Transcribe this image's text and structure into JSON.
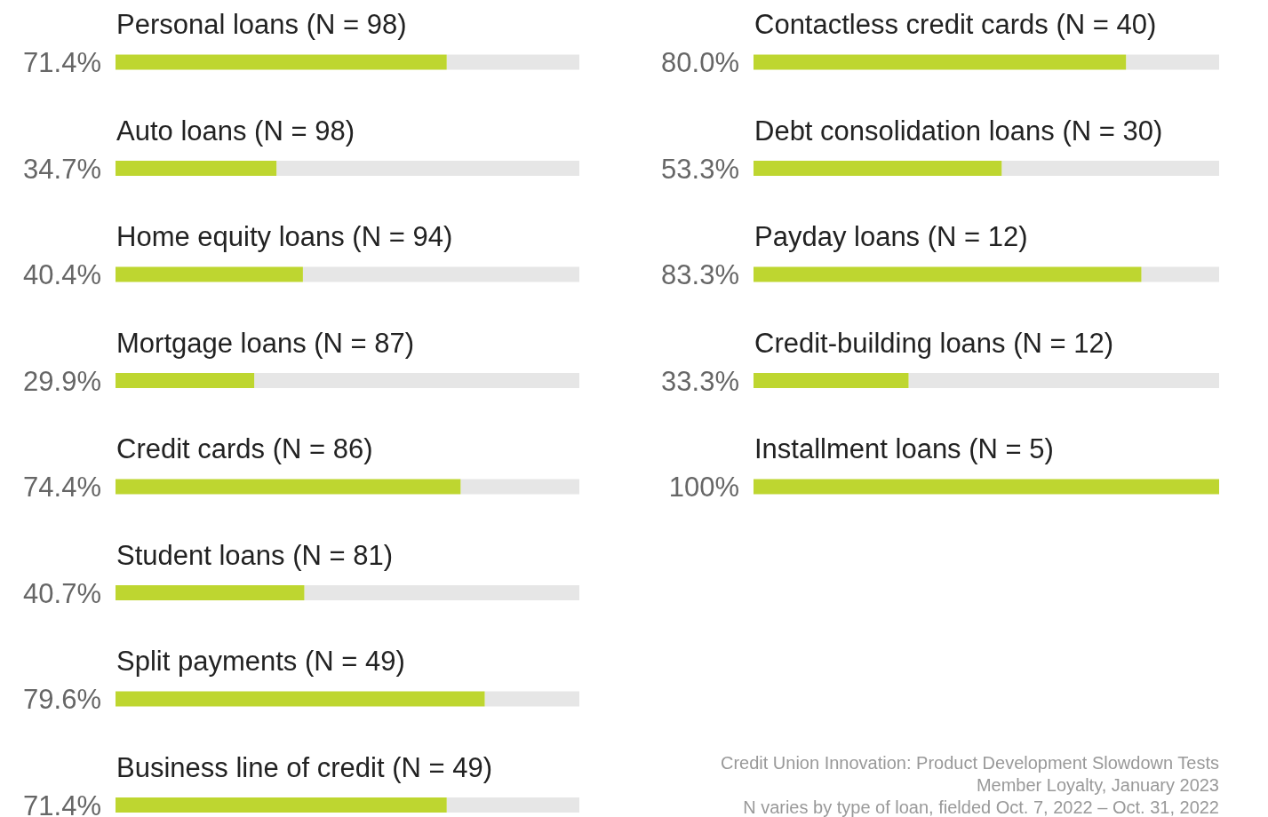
{
  "chart_data": [
    {
      "type": "bar",
      "orientation": "horizontal",
      "categories": [
        "Personal loans (N = 98)",
        "Auto loans (N = 98)",
        "Home equity loans (N = 94)",
        "Mortgage loans (N = 87)",
        "Credit cards (N = 86)",
        "Student loans (N = 81)",
        "Split payments (N = 49)",
        "Business line of credit (N = 49)"
      ],
      "values": [
        71.4,
        34.7,
        40.4,
        29.9,
        74.4,
        40.7,
        79.6,
        71.4
      ],
      "value_labels": [
        "71.4%",
        "34.7%",
        "40.4%",
        "29.9%",
        "74.4%",
        "40.7%",
        "79.6%",
        "71.4%"
      ],
      "color": "#bed630",
      "xlim": [
        0,
        100
      ]
    },
    {
      "type": "bar",
      "orientation": "horizontal",
      "categories": [
        "Contactless credit cards (N = 40)",
        "Debt consolidation loans (N = 30)",
        "Payday loans (N = 12)",
        "Credit-building loans (N = 12)",
        "Installment loans (N = 5)"
      ],
      "values": [
        80.0,
        53.3,
        83.3,
        33.3,
        100
      ],
      "value_labels": [
        "80.0%",
        "53.3%",
        "83.3%",
        "33.3%",
        "100%"
      ],
      "color": "#bed630",
      "xlim": [
        0,
        100
      ],
      "annotations": [
        "Credit Union Innovation: Product Development Slowdown Tests",
        "Member Loyalty, January 2023",
        "N varies by type of loan, fielded Oct. 7, 2022 – Oct. 31, 2022"
      ]
    }
  ]
}
